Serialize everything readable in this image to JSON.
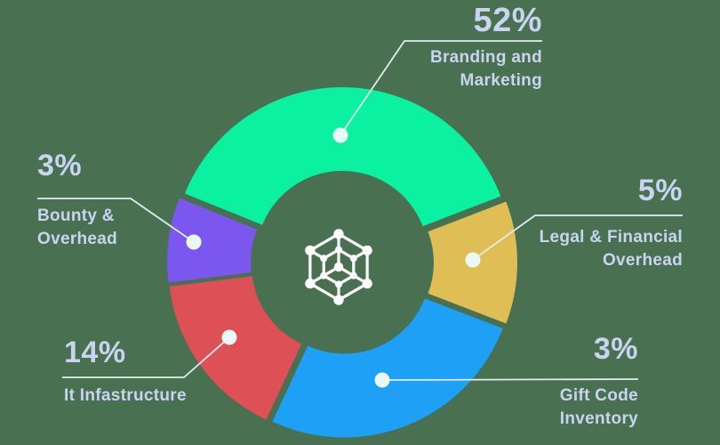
{
  "background_color": "#497051",
  "text_color": "#C9D4F1",
  "center_icon": {
    "name": "blockchain-hexagon-icon",
    "color": "#FFFFFF"
  },
  "chart_data": {
    "type": "pie",
    "variant": "exploded-donut-with-callouts",
    "title": "",
    "legend_position": "callout-labels-around-chart",
    "text_color": "#C9D4F1",
    "line_color": "#DFEDF1",
    "dot_color": "#EAF9F7",
    "slices": [
      {
        "name": "branding-and-marketing",
        "value": 52,
        "value_label": "52%",
        "label": "Branding and Marketing",
        "label_lines": [
          "Branding and",
          "Marketing"
        ],
        "color": "#0BF1A2",
        "start_deg": 21,
        "end_deg": 158
      },
      {
        "name": "bounty-overhead",
        "value": 3,
        "value_label": "3%",
        "label": "Bounty & Overhead",
        "label_lines": [
          "Bounty &",
          "Overhead"
        ],
        "color": "#7B56EF",
        "start_deg": 158,
        "end_deg": 187
      },
      {
        "name": "it-infastructure",
        "value": 14,
        "value_label": "14%",
        "label": "It Infastructure",
        "label_lines": [
          "It Infastructure"
        ],
        "color": "#DC5056",
        "start_deg": 187,
        "end_deg": 245
      },
      {
        "name": "gift-code-inventory",
        "value": 3,
        "value_label": "3%",
        "label": "Gift Code Inventory",
        "label_lines": [
          "Gift Code",
          "Inventory"
        ],
        "color": "#1DA0F5",
        "start_deg": 245,
        "end_deg": 339
      },
      {
        "name": "legal-financial-overhead",
        "value": 5,
        "value_label": "5%",
        "label": "Legal & Financial Overhead",
        "label_lines": [
          "Legal & Financial",
          "Overhead"
        ],
        "color": "#DFBF55",
        "start_deg": 339,
        "end_deg": 381
      }
    ]
  }
}
